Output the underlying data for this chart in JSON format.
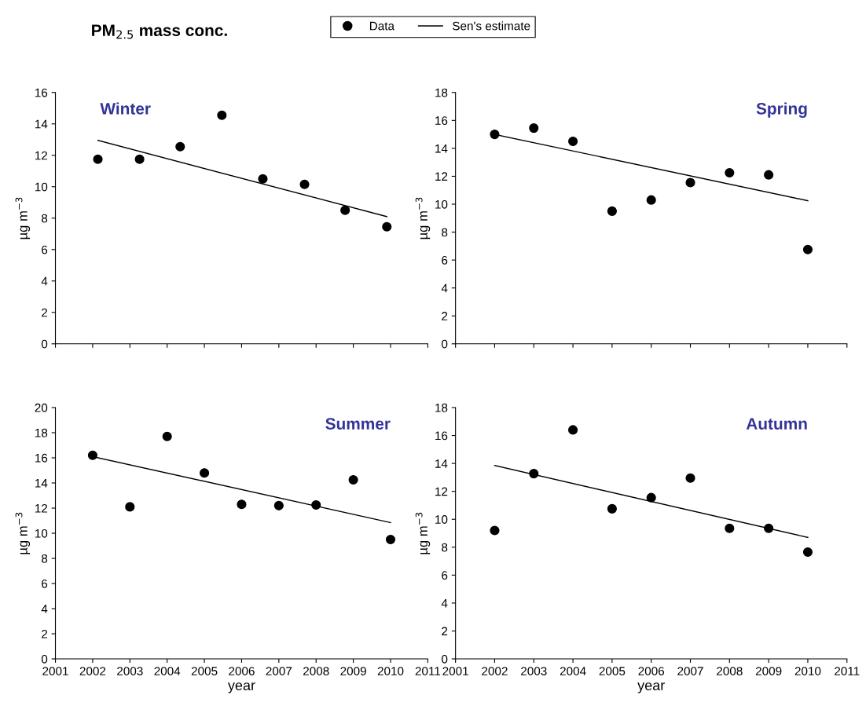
{
  "chart_data": [
    {
      "type": "scatter",
      "title": "Winter",
      "ylabel": "µg m$^{−3}$",
      "annotations": [
        "PM$_{2.5}$ mass conc."
      ],
      "xlim": [
        2001,
        2011
      ],
      "xticks": [
        2001,
        2002,
        2003,
        2004,
        2005,
        2006,
        2007,
        2008,
        2009,
        2010,
        2011
      ],
      "ylim": [
        0,
        16
      ],
      "yticks": [
        0,
        2,
        4,
        6,
        8,
        10,
        12,
        14,
        16
      ],
      "tick_labels": "y",
      "grid": false,
      "legend": "top",
      "series": [
        {
          "name": "Data",
          "marker": "circle",
          "color": "#000000",
          "x": [
            2002.14,
            2003.26,
            2004.35,
            2005.47,
            2006.57,
            2007.69,
            2008.78,
            2009.9
          ],
          "values": [
            11.75,
            11.75,
            12.55,
            14.55,
            10.5,
            10.15,
            8.5,
            7.45
          ]
        },
        {
          "name": "Sen's estimate",
          "type": "line",
          "line_style": "solid",
          "color": "#000000",
          "x": [
            2002.14,
            2009.9
          ],
          "values": [
            12.95,
            8.1
          ]
        }
      ]
    },
    {
      "type": "scatter",
      "title": "Spring",
      "ylabel": "µg m$^{−3}$",
      "xlim": [
        2001,
        2011
      ],
      "xticks": [
        2001,
        2002,
        2003,
        2004,
        2005,
        2006,
        2007,
        2008,
        2009,
        2010,
        2011
      ],
      "ylim": [
        0,
        18
      ],
      "yticks": [
        0,
        2,
        4,
        6,
        8,
        10,
        12,
        14,
        16,
        18
      ],
      "tick_labels": "y",
      "grid": false,
      "series": [
        {
          "marker": "circle",
          "color": "#000000",
          "x": [
            2002,
            2003,
            2004,
            2005,
            2006,
            2007,
            2008,
            2009,
            2010
          ],
          "values": [
            15.0,
            15.45,
            14.5,
            9.5,
            10.3,
            11.55,
            12.25,
            12.1,
            6.75
          ]
        },
        {
          "type": "line",
          "line_style": "solid",
          "color": "#000000",
          "x": [
            2002,
            2010
          ],
          "values": [
            15.0,
            10.25
          ]
        }
      ]
    },
    {
      "type": "scatter",
      "title": "Summer",
      "xlabel": "year",
      "ylabel": "µg m$^{−3}$",
      "xlim": [
        2001,
        2011
      ],
      "xticks": [
        2001,
        2002,
        2003,
        2004,
        2005,
        2006,
        2007,
        2008,
        2009,
        2010,
        2011
      ],
      "ylim": [
        0,
        20
      ],
      "yticks": [
        0,
        2,
        4,
        6,
        8,
        10,
        12,
        14,
        16,
        18,
        20
      ],
      "grid": false,
      "series": [
        {
          "marker": "circle",
          "color": "#000000",
          "x": [
            2002,
            2003,
            2004,
            2005,
            2006,
            2007,
            2008,
            2009,
            2010
          ],
          "values": [
            16.2,
            12.1,
            17.7,
            14.8,
            12.3,
            12.2,
            12.25,
            14.25,
            9.5
          ]
        },
        {
          "type": "line",
          "line_style": "solid",
          "color": "#000000",
          "x": [
            2002,
            2010
          ],
          "values": [
            16.1,
            10.85
          ]
        }
      ]
    },
    {
      "type": "scatter",
      "title": "Autumn",
      "xlabel": "year",
      "ylabel": "µg m$^{−3}$",
      "xlim": [
        2001,
        2011
      ],
      "xticks": [
        2001,
        2002,
        2003,
        2004,
        2005,
        2006,
        2007,
        2008,
        2009,
        2010,
        2011
      ],
      "ylim": [
        0,
        18
      ],
      "yticks": [
        0,
        2,
        4,
        6,
        8,
        10,
        12,
        14,
        16,
        18
      ],
      "grid": false,
      "series": [
        {
          "marker": "circle",
          "color": "#000000",
          "x": [
            2002,
            2003,
            2004,
            2005,
            2006,
            2007,
            2008,
            2009,
            2010
          ],
          "values": [
            9.2,
            13.27,
            16.4,
            10.75,
            11.55,
            12.95,
            9.35,
            9.35,
            7.65
          ]
        },
        {
          "type": "line",
          "line_style": "solid",
          "color": "#000000",
          "x": [
            2002,
            2010
          ],
          "values": [
            13.85,
            8.7
          ]
        }
      ]
    }
  ]
}
